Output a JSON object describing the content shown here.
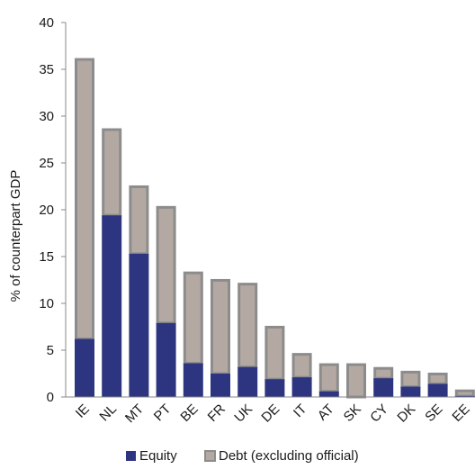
{
  "chart_data": {
    "type": "bar",
    "stacked": true,
    "categories": [
      "IE",
      "NL",
      "MT",
      "PT",
      "BE",
      "FR",
      "UK",
      "DE",
      "IT",
      "AT",
      "SK",
      "CY",
      "DK",
      "SE",
      "EE"
    ],
    "series": [
      {
        "name": "Equity",
        "color": "#2e3580",
        "values": [
          6.2,
          19.4,
          15.3,
          7.9,
          3.6,
          2.5,
          3.2,
          1.9,
          2.1,
          0.6,
          0.0,
          2.0,
          1.1,
          1.4,
          0.1
        ]
      },
      {
        "name": "Debt (excluding official)",
        "color": "#b3a9a2",
        "border": "#8c8c8c",
        "values": [
          30.0,
          9.3,
          7.3,
          12.5,
          9.8,
          10.1,
          9.0,
          5.7,
          2.6,
          3.0,
          3.6,
          1.2,
          1.7,
          1.2,
          0.7
        ]
      }
    ],
    "ylabel": "% of  counterpart GDP",
    "ylim": [
      0,
      40
    ],
    "yticks": [
      "0",
      "5",
      "10",
      "15",
      "20",
      "25",
      "30",
      "35",
      "40"
    ],
    "grid": false,
    "legend": "bottom"
  }
}
